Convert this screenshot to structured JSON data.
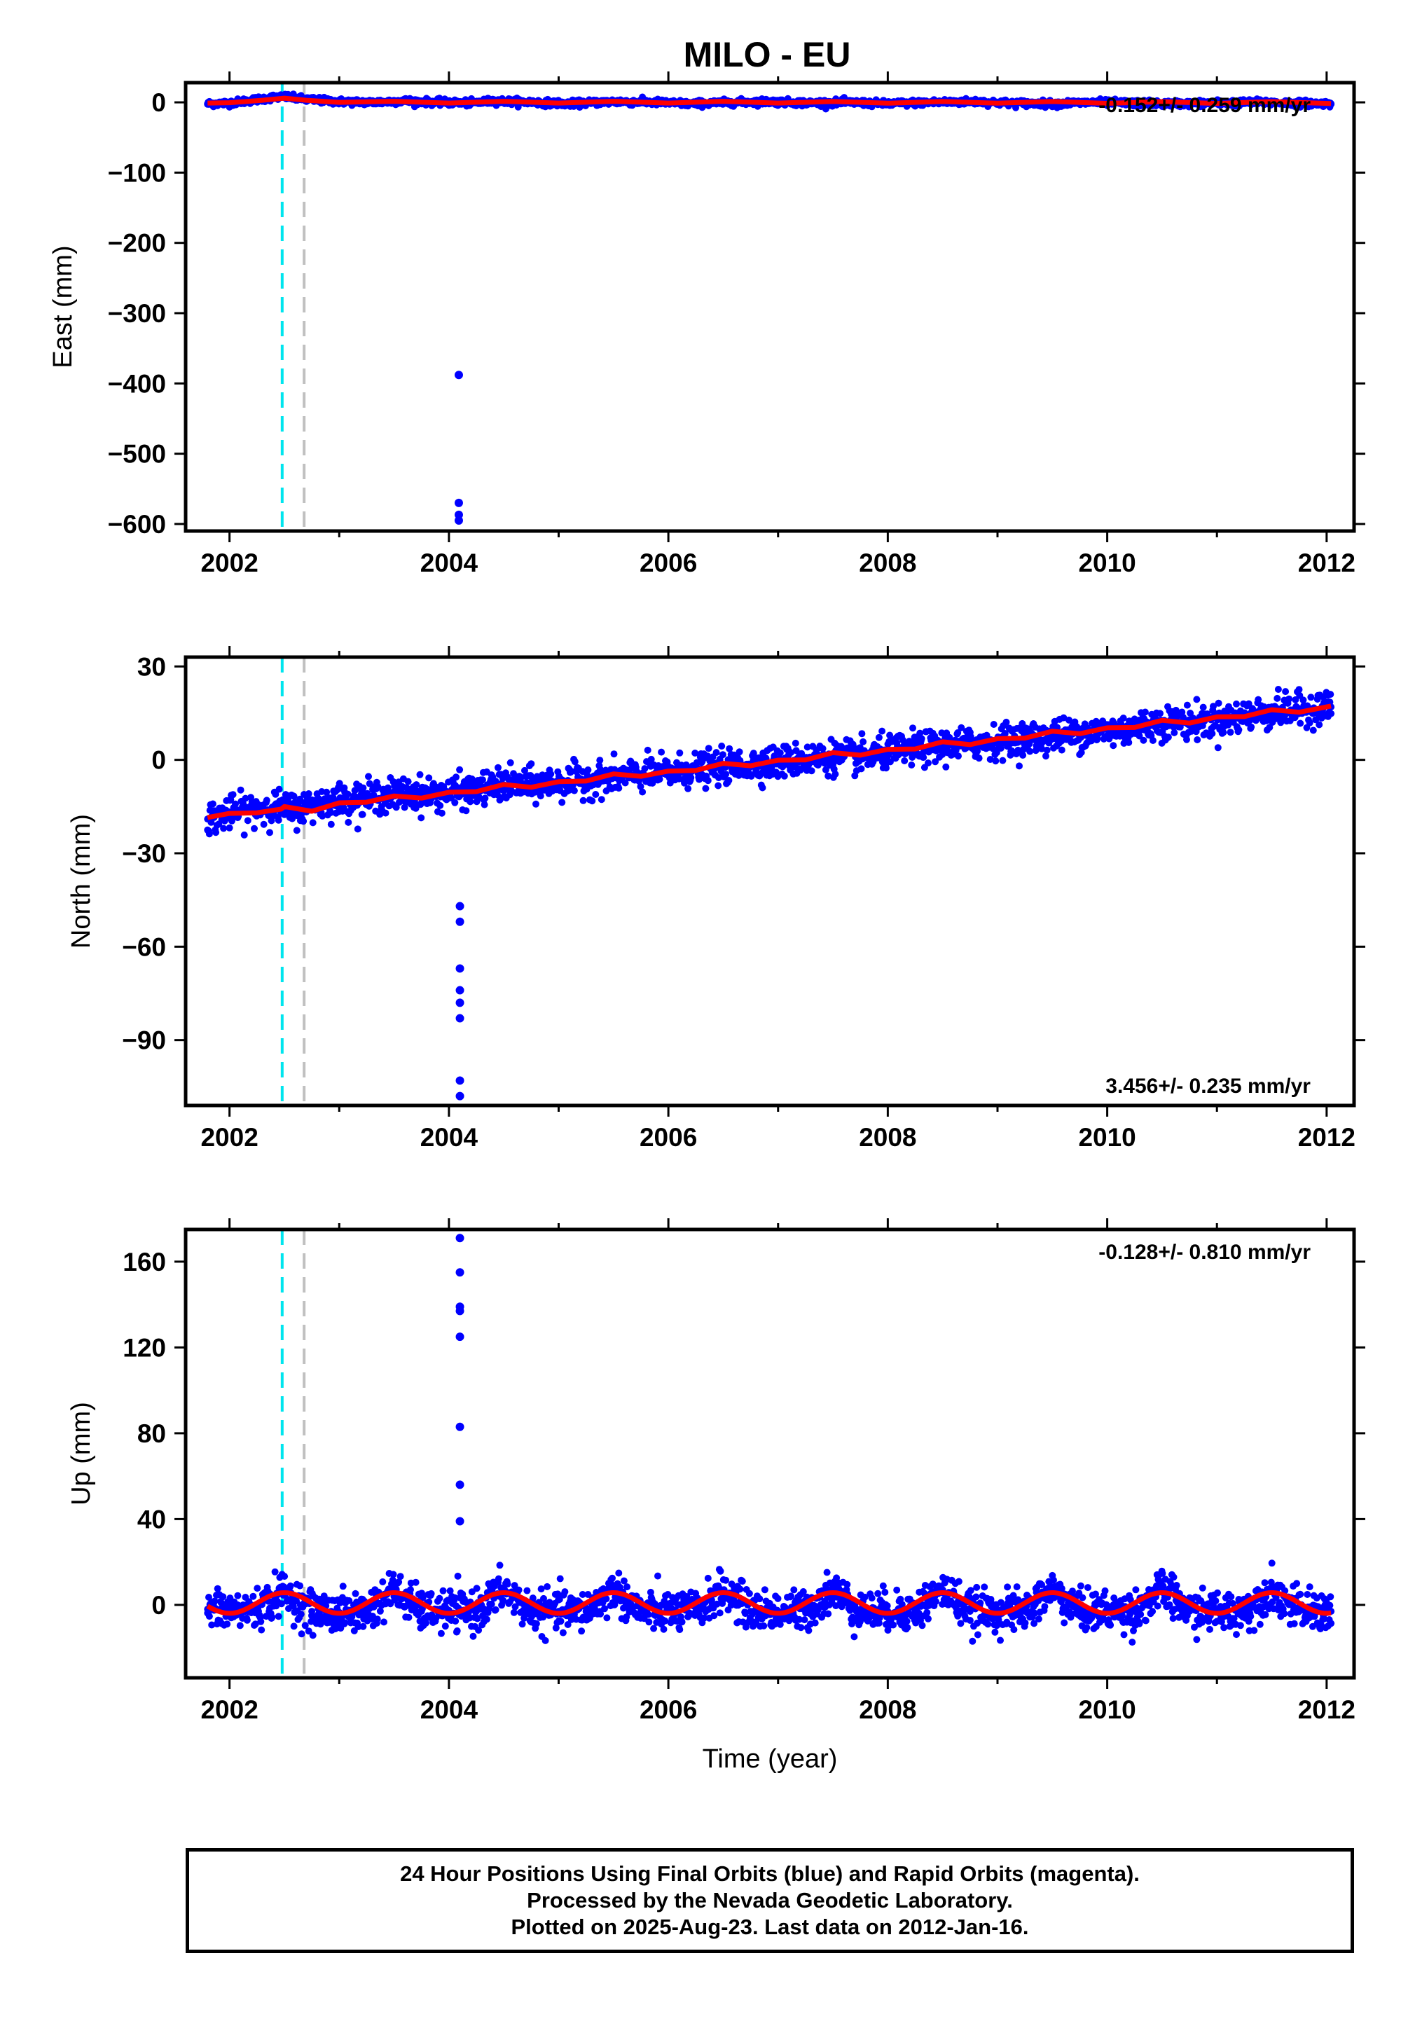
{
  "colors": {
    "final_orbit_points": "#0000ff",
    "model_fit": "#ff0000",
    "marker_equipment": "#00e5ee",
    "marker_other": "#c0c0c0",
    "frame": "#000000"
  },
  "chart_data": [
    {
      "type": "scatter",
      "title": "MILO - EU",
      "xlabel": "",
      "ylabel": "East (mm)",
      "xlim": [
        2001.6,
        2012.25
      ],
      "ylim": [
        -610,
        28
      ],
      "xticks": [
        2002,
        2004,
        2006,
        2008,
        2010,
        2012
      ],
      "xtick_labels": [
        "2002",
        "2004",
        "2006",
        "2008",
        "2010",
        "2012"
      ],
      "yticks": [
        0,
        -100,
        -200,
        -300,
        -400,
        -500,
        -600
      ],
      "ytick_labels": [
        "0",
        "−100",
        "−200",
        "−300",
        "−400",
        "−500",
        "−600"
      ],
      "velocity_label": "-0.152+/- 0.259 mm/yr",
      "velocity_position": "top-right",
      "vertical_markers": [
        {
          "x": 2002.48,
          "color": "cyan"
        },
        {
          "x": 2002.68,
          "color": "gray"
        }
      ],
      "series": [
        {
          "role": "observations",
          "x": [
            2001.8,
            2002.0,
            2002.2,
            2002.4,
            2002.5,
            2002.7,
            2003.0,
            2003.3,
            2003.6,
            2003.9,
            2004.2,
            2004.4,
            2004.8,
            2005.1,
            2005.5,
            2005.9,
            2006.2,
            2006.6,
            2006.9,
            2007.3,
            2007.6,
            2008.0,
            2008.4,
            2008.8,
            2009.1,
            2009.5,
            2009.9,
            2010.2,
            2010.6,
            2011.0,
            2011.4,
            2011.7,
            2012.04
          ],
          "y": [
            -2,
            -1,
            3,
            7,
            8,
            4,
            1,
            0,
            2,
            0,
            -1,
            2,
            0,
            -2,
            1,
            0,
            -2,
            0,
            1,
            -1,
            0,
            -2,
            0,
            1,
            -1,
            -2,
            0,
            -1,
            -2,
            -1,
            0,
            -1,
            -2
          ]
        },
        {
          "role": "outliers",
          "x": [
            2004.09,
            2004.09,
            2004.09,
            2004.09
          ],
          "y": [
            -388,
            -570,
            -587,
            -595
          ]
        },
        {
          "role": "model",
          "x": [
            2001.8,
            2002.0,
            2002.3,
            2002.5,
            2002.7,
            2003.0,
            2003.5,
            2004.0,
            2004.5,
            2005.0,
            2005.5,
            2006.0,
            2006.5,
            2007.0,
            2007.5,
            2008.0,
            2008.5,
            2009.0,
            2009.5,
            2010.0,
            2010.5,
            2011.0,
            2011.5,
            2012.04
          ],
          "y": [
            -1,
            -0.5,
            3,
            6,
            3,
            0,
            1.5,
            -1,
            1.5,
            -1,
            1.5,
            -1,
            1.5,
            -1,
            1.2,
            -1.2,
            1.2,
            -1.2,
            1.2,
            -1.4,
            1,
            -1.5,
            1,
            -1.6
          ]
        }
      ]
    },
    {
      "type": "scatter",
      "title": "",
      "xlabel": "",
      "ylabel": "North (mm)",
      "xlim": [
        2001.6,
        2012.25
      ],
      "ylim": [
        -111,
        33
      ],
      "xticks": [
        2002,
        2004,
        2006,
        2008,
        2010,
        2012
      ],
      "xtick_labels": [
        "2002",
        "2004",
        "2006",
        "2008",
        "2010",
        "2012"
      ],
      "yticks": [
        30,
        0,
        -30,
        -60,
        -90
      ],
      "ytick_labels": [
        "30",
        "0",
        "−30",
        "−60",
        "−90"
      ],
      "velocity_label": "3.456+/- 0.235 mm/yr",
      "velocity_position": "bottom-right",
      "vertical_markers": [
        {
          "x": 2002.48,
          "color": "cyan"
        },
        {
          "x": 2002.68,
          "color": "gray"
        }
      ],
      "series": [
        {
          "role": "observations",
          "x": [
            2001.8,
            2002.0,
            2002.2,
            2002.4,
            2002.6,
            2002.8,
            2003.0,
            2003.3,
            2003.6,
            2003.9,
            2004.2,
            2004.5,
            2004.8,
            2005.1,
            2005.4,
            2005.7,
            2006.0,
            2006.3,
            2006.6,
            2006.9,
            2007.2,
            2007.5,
            2007.8,
            2008.1,
            2008.4,
            2008.7,
            2009.0,
            2009.3,
            2009.6,
            2009.9,
            2010.2,
            2010.5,
            2010.8,
            2011.1,
            2011.4,
            2011.7,
            2012.04
          ],
          "y": [
            -19,
            -17,
            -16,
            -15,
            -16,
            -14,
            -13,
            -12,
            -11,
            -11,
            -10,
            -8,
            -8,
            -7,
            -6,
            -5,
            -4,
            -3,
            -2,
            -1,
            0,
            1,
            1,
            3,
            4,
            5,
            6,
            7,
            8,
            9,
            10,
            12,
            12,
            13,
            15,
            16,
            17
          ]
        },
        {
          "role": "outliers",
          "x": [
            2004.1,
            2004.1,
            2004.1,
            2004.1,
            2004.1,
            2004.1,
            2004.1,
            2004.1
          ],
          "y": [
            -47,
            -52,
            -67,
            -74,
            -78,
            -83,
            -103,
            -108
          ]
        },
        {
          "role": "model",
          "x": [
            2001.8,
            2002.0,
            2002.25,
            2002.47,
            2002.5,
            2002.75,
            2003.0,
            2003.25,
            2003.5,
            2003.75,
            2004.0,
            2004.25,
            2004.5,
            2004.75,
            2005.0,
            2005.25,
            2005.5,
            2005.75,
            2006.0,
            2006.25,
            2006.5,
            2006.75,
            2007.0,
            2007.25,
            2007.5,
            2007.75,
            2008.0,
            2008.25,
            2008.5,
            2008.75,
            2009.0,
            2009.25,
            2009.5,
            2009.75,
            2010.0,
            2010.25,
            2010.5,
            2010.75,
            2011.0,
            2011.25,
            2011.5,
            2011.75,
            2012.04
          ],
          "y": [
            -18.5,
            -17.2,
            -17.0,
            -15.8,
            -15.0,
            -16.5,
            -13.8,
            -13.6,
            -11.6,
            -12.3,
            -10.4,
            -10.2,
            -7.9,
            -8.8,
            -7.0,
            -6.8,
            -4.5,
            -5.3,
            -3.6,
            -3.4,
            -1.1,
            -1.9,
            -0.1,
            0.0,
            2.3,
            1.5,
            3.4,
            3.5,
            5.8,
            4.9,
            6.8,
            7.0,
            9.2,
            8.4,
            10.3,
            10.4,
            12.7,
            11.8,
            13.8,
            13.9,
            16.1,
            15.3,
            17.3
          ]
        }
      ]
    },
    {
      "type": "scatter",
      "title": "",
      "xlabel": "Time (year)",
      "ylabel": "Up (mm)",
      "xlim": [
        2001.6,
        2012.25
      ],
      "ylim": [
        -34,
        175
      ],
      "xticks": [
        2002,
        2004,
        2006,
        2008,
        2010,
        2012
      ],
      "xtick_labels": [
        "2002",
        "2004",
        "2006",
        "2008",
        "2010",
        "2012"
      ],
      "yticks": [
        160,
        120,
        80,
        40,
        0
      ],
      "ytick_labels": [
        "160",
        "120",
        "80",
        "40",
        "0"
      ],
      "velocity_label": "-0.128+/- 0.810 mm/yr",
      "velocity_position": "top-right",
      "vertical_markers": [
        {
          "x": 2002.48,
          "color": "cyan"
        },
        {
          "x": 2002.68,
          "color": "gray"
        }
      ],
      "series": [
        {
          "role": "observations",
          "x": [
            2001.8,
            2002.0,
            2002.25,
            2002.5,
            2002.75,
            2003.0,
            2003.25,
            2003.5,
            2003.75,
            2004.0,
            2004.25,
            2004.5,
            2004.75,
            2005.0,
            2005.25,
            2005.5,
            2005.75,
            2006.0,
            2006.25,
            2006.5,
            2006.75,
            2007.0,
            2007.25,
            2007.5,
            2007.75,
            2008.0,
            2008.25,
            2008.5,
            2008.75,
            2009.0,
            2009.25,
            2009.5,
            2009.75,
            2010.0,
            2010.25,
            2010.5,
            2010.75,
            2011.0,
            2011.25,
            2011.5,
            2011.75,
            2012.04
          ],
          "y": [
            -2,
            -3,
            -2,
            6,
            -3,
            -4,
            -3,
            7,
            -3,
            -3,
            -3,
            7,
            -3,
            -3,
            -3,
            7,
            -3,
            -3,
            -3,
            7,
            -3,
            -3,
            -3,
            7,
            -3,
            -3,
            -3,
            7,
            -3,
            -3,
            -3,
            7,
            -3,
            -3,
            -3,
            7,
            -3,
            -3,
            -3,
            7,
            -3,
            -3
          ]
        },
        {
          "role": "outliers",
          "x": [
            2004.1,
            2004.1,
            2004.1,
            2004.1,
            2004.1,
            2004.1,
            2004.1,
            2004.1
          ],
          "y": [
            171,
            155,
            139,
            137,
            125,
            83,
            56,
            39
          ]
        },
        {
          "role": "model",
          "period_years": 1.0,
          "phase_peak_year": 2002.5,
          "amplitude_mm": 4.8,
          "offset_mm": -2.0,
          "x": [
            2001.8,
            2012.04
          ],
          "y": [
            -2.0,
            -2.0
          ]
        }
      ]
    }
  ],
  "footer": {
    "line1": "24 Hour Positions Using Final Orbits (blue) and Rapid Orbits (magenta).",
    "line2": "Processed by the Nevada Geodetic Laboratory.",
    "line3": "Plotted on 2025-Aug-23. Last data on 2012-Jan-16."
  }
}
